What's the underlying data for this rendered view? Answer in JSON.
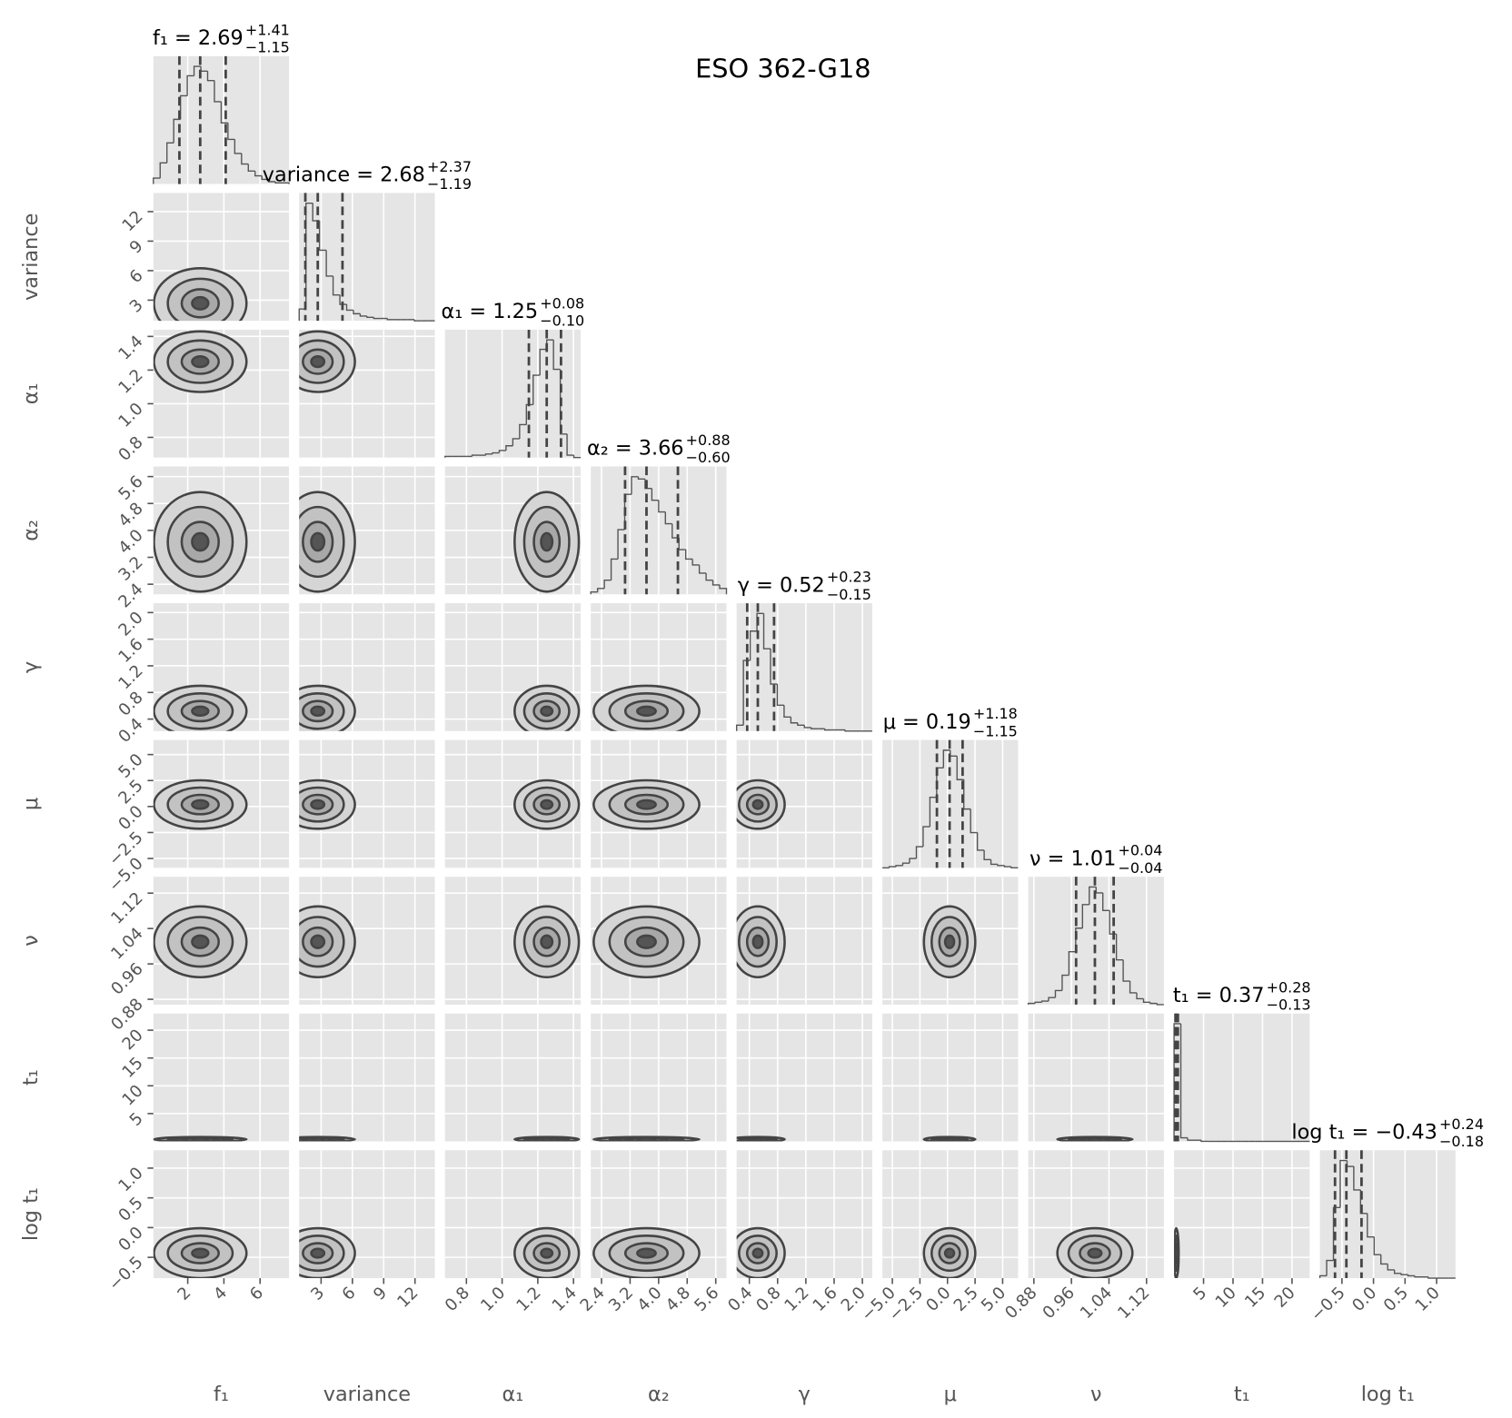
{
  "chart_data": {
    "type": "corner",
    "title": "ESO 362-G18",
    "grid": true,
    "color": "#444444",
    "params": [
      {
        "name": "f₁",
        "title": "f₁ = 2.69",
        "median": 2.69,
        "upper": {
          "value": 1.41,
          "label": "+1.41"
        },
        "lower": {
          "value": 1.15,
          "label": "−1.15"
        },
        "lim": [
          0.1,
          7.6
        ],
        "ticks": [
          2,
          4,
          6
        ],
        "hist": [
          5,
          18,
          35,
          55,
          75,
          92,
          100,
          96,
          88,
          70,
          52,
          38,
          26,
          17,
          11,
          7,
          4,
          2,
          1,
          1
        ]
      },
      {
        "name": "variance",
        "title": "variance = 2.68",
        "median": 2.68,
        "upper": {
          "value": 2.37,
          "label": "+2.37"
        },
        "lower": {
          "value": 1.19,
          "label": "−1.19"
        },
        "lim": [
          0.9,
          13.9
        ],
        "ticks": [
          3,
          6,
          9,
          12
        ],
        "hist": [
          10,
          100,
          85,
          60,
          38,
          22,
          14,
          9,
          6,
          4,
          3,
          2,
          2,
          1,
          1,
          1,
          1,
          0,
          0,
          0
        ]
      },
      {
        "name": "α₁",
        "title": "α₁ = 1.25",
        "median": 1.25,
        "upper": {
          "value": 0.08,
          "label": "+0.08"
        },
        "lower": {
          "value": 0.1,
          "label": "−0.10"
        },
        "lim": [
          0.68,
          1.44
        ],
        "ticks": [
          0.8,
          {
            "value": 1,
            "label": "1.0"
          },
          1.2,
          1.4
        ],
        "hist": [
          1,
          1,
          1,
          1,
          2,
          2,
          3,
          4,
          6,
          10,
          16,
          28,
          45,
          70,
          92,
          100,
          75,
          20,
          2,
          0
        ]
      },
      {
        "name": "α₂",
        "title": "α₂ = 3.66",
        "median": 3.66,
        "upper": {
          "value": 0.88,
          "label": "+0.88"
        },
        "lower": {
          "value": 0.6,
          "label": "−0.60"
        },
        "lim": [
          2.1,
          5.9
        ],
        "ticks": [
          2.4,
          3.2,
          {
            "value": 4,
            "label": "4.0"
          },
          4.8,
          5.6
        ],
        "hist": [
          2,
          5,
          12,
          30,
          55,
          85,
          100,
          98,
          90,
          80,
          70,
          60,
          48,
          38,
          30,
          25,
          18,
          12,
          8,
          5
        ]
      },
      {
        "name": "γ",
        "title": "γ = 0.52",
        "median": 0.52,
        "upper": {
          "value": 0.23,
          "label": "+0.23"
        },
        "lower": {
          "value": 0.15,
          "label": "−0.15"
        },
        "lim": [
          0.22,
          2.14
        ],
        "ticks": [
          0.4,
          0.8,
          1.2,
          1.6,
          {
            "value": 2,
            "label": "2.0"
          }
        ],
        "hist": [
          5,
          60,
          85,
          100,
          70,
          40,
          22,
          12,
          7,
          5,
          3,
          2,
          2,
          1,
          1,
          1,
          0,
          0,
          0,
          0
        ]
      },
      {
        "name": "μ",
        "title": "μ = 0.19",
        "median": 0.19,
        "upper": {
          "value": 1.18,
          "label": "+1.18"
        },
        "lower": {
          "value": 1.15,
          "label": "−1.15"
        },
        "lim": [
          -5.9,
          6.4
        ],
        "ticks": [
          {
            "value": -5,
            "label": "−5.0"
          },
          {
            "value": -2.5,
            "label": "−2.5"
          },
          {
            "value": 0,
            "label": "0.0"
          },
          2.5,
          {
            "value": 5,
            "label": "5.0"
          }
        ],
        "hist": [
          0,
          1,
          2,
          4,
          8,
          18,
          35,
          60,
          85,
          100,
          95,
          75,
          50,
          30,
          15,
          7,
          3,
          2,
          1,
          0
        ]
      },
      {
        "name": "ν",
        "title": "ν = 1.01",
        "median": 1.01,
        "upper": {
          "value": 0.04,
          "label": "+0.04"
        },
        "lower": {
          "value": 0.04,
          "label": "−0.04"
        },
        "lim": [
          0.868,
          1.157
        ],
        "ticks": [
          0.88,
          0.96,
          1.04,
          1.12
        ],
        "hist": [
          1,
          2,
          3,
          6,
          12,
          25,
          45,
          65,
          85,
          100,
          95,
          80,
          60,
          38,
          20,
          10,
          5,
          2,
          1,
          0
        ]
      },
      {
        "name": "t₁",
        "title": "t₁ = 0.37",
        "median": 0.37,
        "upper": {
          "value": 0.28,
          "label": "+0.28"
        },
        "lower": {
          "value": 0.13,
          "label": "−0.13"
        },
        "lim": [
          0,
          23
        ],
        "ticks": [
          5,
          10,
          15,
          20
        ],
        "hist": [
          100,
          3,
          1,
          1,
          0,
          0,
          0,
          0,
          0,
          0,
          0,
          0,
          0,
          0,
          0,
          0,
          0,
          0,
          0,
          0
        ]
      },
      {
        "name": "log t₁",
        "title": "log t₁ = −0.43",
        "median": -0.43,
        "upper": {
          "value": 0.24,
          "label": "+0.24"
        },
        "lower": {
          "value": 0.18,
          "label": "−0.18"
        },
        "lim": [
          -0.85,
          1.3
        ],
        "ticks": [
          {
            "value": -0.5,
            "label": "−0.5"
          },
          {
            "value": 0,
            "label": "0.0"
          },
          0.5,
          {
            "value": 1,
            "label": "1.0"
          }
        ],
        "hist": [
          2,
          15,
          60,
          100,
          95,
          75,
          55,
          35,
          20,
          12,
          7,
          4,
          3,
          2,
          1,
          1,
          0,
          0,
          0,
          0
        ]
      }
    ]
  }
}
